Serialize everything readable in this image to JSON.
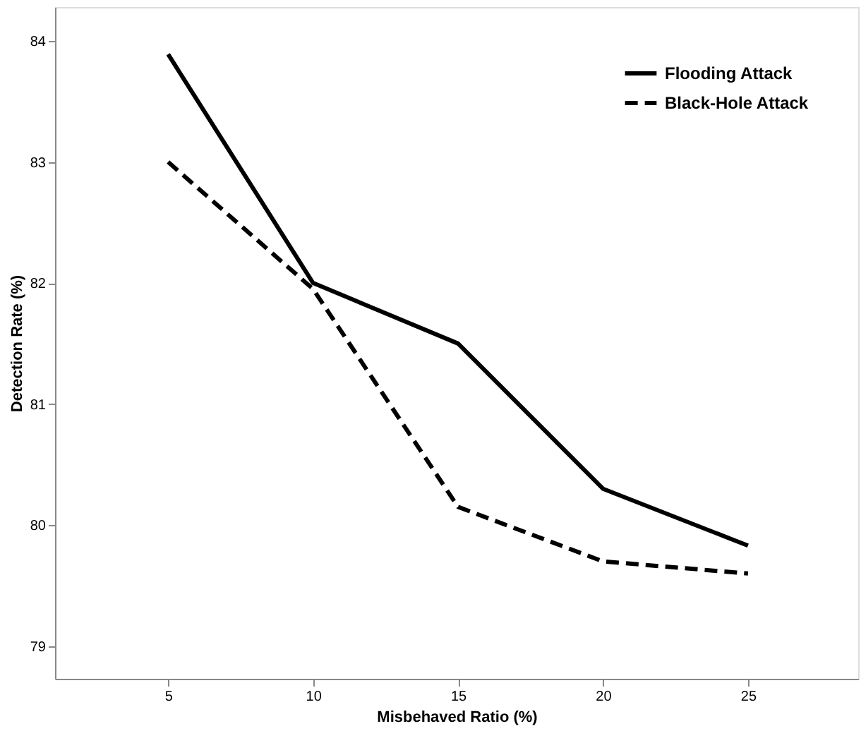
{
  "chart_data": {
    "type": "line",
    "xlabel": "Misbehaved Ratio (%)",
    "ylabel": "Detection Rate (%)",
    "x": [
      5,
      10,
      15,
      20,
      25
    ],
    "series": [
      {
        "name": "Flooding Attack",
        "color": "#000000",
        "line_style": "solid",
        "values": [
          83.89,
          82.0,
          81.5,
          80.3,
          79.83
        ]
      },
      {
        "name": "Black-Hole Attack",
        "color": "#000000",
        "line_style": "dashed",
        "values": [
          83.0,
          81.95,
          80.15,
          79.7,
          79.6
        ]
      }
    ],
    "xlim": [
      1.1,
      28.8
    ],
    "xticks": [
      5,
      10,
      15,
      20,
      25
    ],
    "ylim": [
      78.73,
      84.28
    ],
    "yticks": [
      79,
      80,
      81,
      82,
      83,
      84
    ],
    "grid": false,
    "legend": "top right",
    "marker": "none"
  }
}
